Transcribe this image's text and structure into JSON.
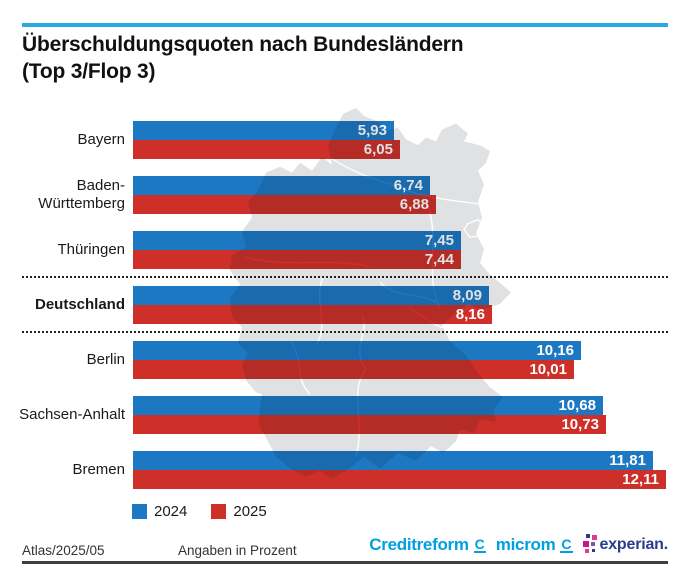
{
  "header": {
    "title_line1": "Überschuldungsquoten nach Bundesländern",
    "title_line2": "(Top 3/Flop 3)"
  },
  "chart_data": {
    "type": "bar",
    "orientation": "horizontal",
    "title": "Überschuldungsquoten nach Bundesländern (Top 3/Flop 3)",
    "categories": [
      "Bayern",
      "Baden-Württemberg",
      "Thüringen",
      "Deutschland",
      "Berlin",
      "Sachsen-Anhalt",
      "Bremen"
    ],
    "series": [
      {
        "name": "2024",
        "color": "#1d78c4",
        "values": [
          5.93,
          6.74,
          7.45,
          8.09,
          10.16,
          10.68,
          11.81
        ]
      },
      {
        "name": "2025",
        "color": "#ce3029",
        "values": [
          6.05,
          6.88,
          7.44,
          8.16,
          10.01,
          10.73,
          12.11
        ]
      }
    ],
    "value_labels": [
      [
        "5,93",
        "6,74",
        "7,45",
        "8,09",
        "10,16",
        "10,68",
        "11,81"
      ],
      [
        "6,05",
        "6,88",
        "7,44",
        "8,16",
        "10,01",
        "10,73",
        "12,11"
      ]
    ],
    "highlight_category": "Deutschland",
    "separators_between": [
      [
        "Thüringen",
        "Deutschland"
      ],
      [
        "Deutschland",
        "Berlin"
      ]
    ],
    "xlim": [
      0,
      12.5
    ],
    "unit": "Prozent",
    "grid": false,
    "legend_position": "bottom",
    "background_icon": "germany-map-silhouette"
  },
  "legend": {
    "items": [
      {
        "label": "2024",
        "color": "#1d78c4"
      },
      {
        "label": "2025",
        "color": "#ce3029"
      }
    ]
  },
  "footer": {
    "source": "Atlas/2025/05",
    "note": "Angaben in Prozent",
    "logos": {
      "creditreform": "Creditreform",
      "creditreform_mark": "C",
      "microm": "microm",
      "microm_mark": "C",
      "experian": "experian."
    }
  },
  "colors": {
    "accent_line": "#29a9e2",
    "bar_2024": "#1d78c4",
    "bar_2025": "#ce3029",
    "map_gray": "#e0e1e2",
    "logo_cyan": "#00a0e1",
    "logo_navy": "#2d3b8e"
  }
}
